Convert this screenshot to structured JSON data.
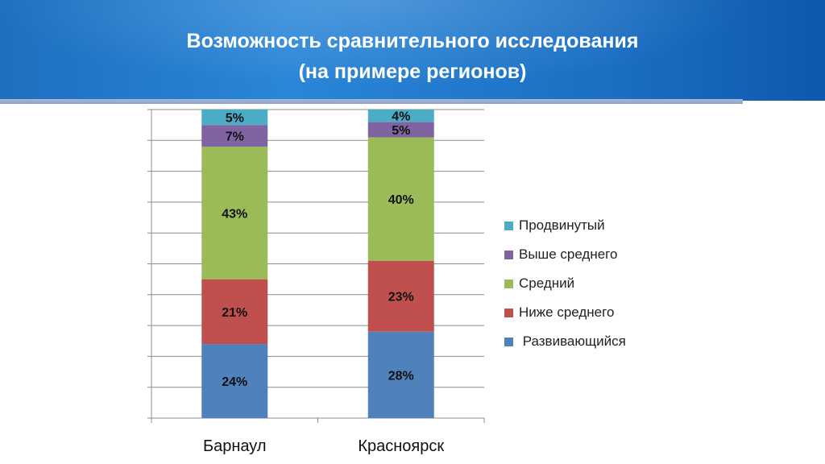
{
  "header": {
    "title_line1": "Возможность сравнительного исследования",
    "title_line2": "(на примере регионов)"
  },
  "chart_data": {
    "type": "bar",
    "stacked": true,
    "percent": true,
    "categories": [
      "Барнаул",
      "Красноярск"
    ],
    "series": [
      {
        "name": " Развивающийся",
        "color": "#4f81bd",
        "values": [
          24,
          28
        ],
        "labels": [
          "24%",
          "28%"
        ]
      },
      {
        "name": "Ниже среднего",
        "color": "#c0504d",
        "values": [
          21,
          23
        ],
        "labels": [
          "21%",
          "23%"
        ]
      },
      {
        "name": "Средний",
        "color": "#9bbb59",
        "values": [
          43,
          40
        ],
        "labels": [
          "43%",
          "40%"
        ]
      },
      {
        "name": "Выше среднего",
        "color": "#8064a2",
        "values": [
          7,
          5
        ],
        "labels": [
          "7%",
          "5%"
        ]
      },
      {
        "name": "Продвинутый",
        "color": "#4bacc6",
        "values": [
          5,
          4
        ],
        "labels": [
          "5%",
          "4%"
        ]
      }
    ],
    "legend_order": [
      "Продвинутый",
      "Выше среднего",
      "Средний",
      "Ниже среднего",
      " Развивающийся"
    ],
    "legend_colors": [
      "#4bacc6",
      "#8064a2",
      "#9bbb59",
      "#c0504d",
      "#4f81bd"
    ],
    "ylim": [
      0,
      100
    ],
    "grid": true,
    "legend_position": "right"
  }
}
